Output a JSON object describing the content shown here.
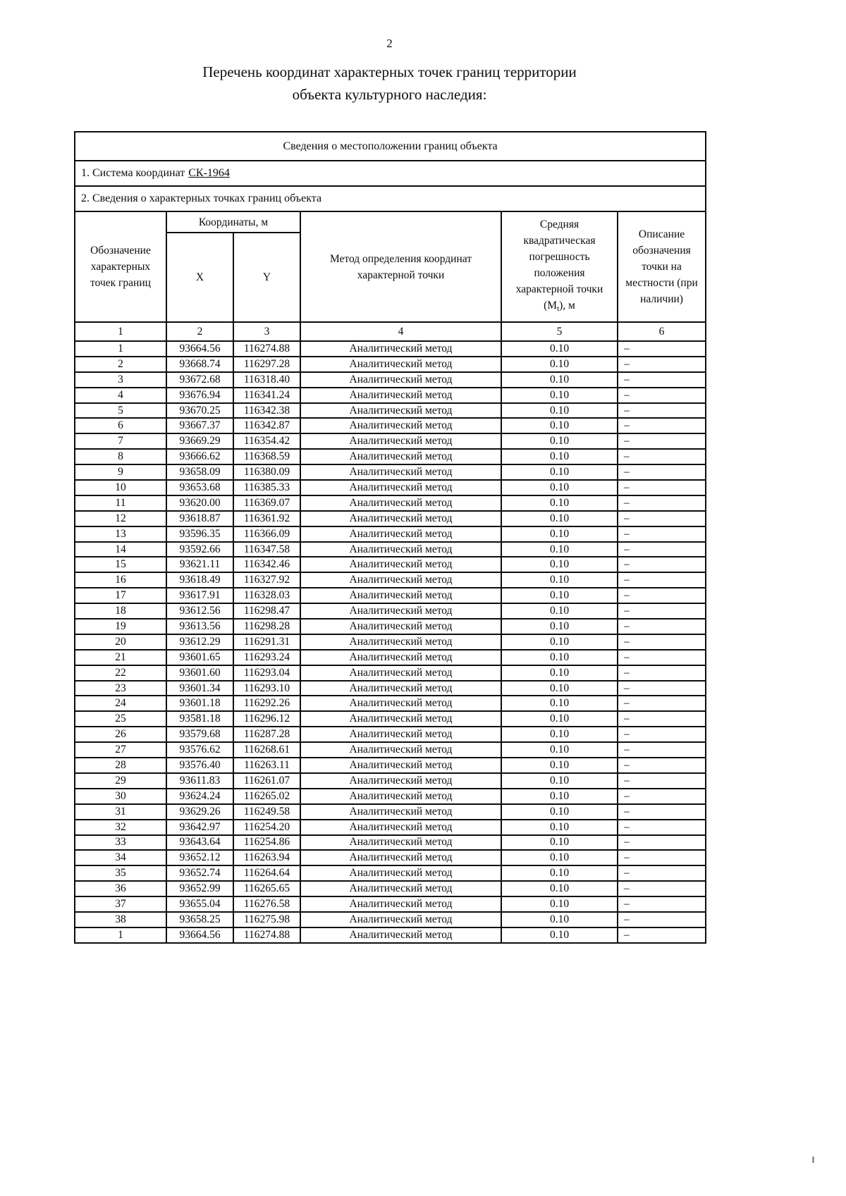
{
  "page": {
    "number": "2",
    "title_line1": "Перечень координат характерных точек границ территории",
    "title_line2": "объекта культурного наследия:"
  },
  "table": {
    "section_header": "Сведения о местоположении границ объекта",
    "coordinate_system_label": "1. Система координат",
    "coordinate_system_value": "СК-1964",
    "points_section_label": "2. Сведения о характерных точках границ объекта",
    "headers": {
      "point_designation": "Обозначение характерных точек границ",
      "coordinates_group": "Координаты, м",
      "x": "X",
      "y": "Y",
      "method": "Метод определения координат характерной точки",
      "error_pre": "Средняя квадратическая погрешность положения характерной точки (M",
      "error_sub": "t",
      "error_post": "), м",
      "description": "Описание обозначения точки на местности (при наличии)"
    },
    "column_numbers": [
      "1",
      "2",
      "3",
      "4",
      "5",
      "6"
    ],
    "rows": [
      {
        "n": "1",
        "x": "93664.56",
        "y": "116274.88",
        "method": "Аналитический метод",
        "error": "0.10",
        "desc": "–"
      },
      {
        "n": "2",
        "x": "93668.74",
        "y": "116297.28",
        "method": "Аналитический метод",
        "error": "0.10",
        "desc": "–"
      },
      {
        "n": "3",
        "x": "93672.68",
        "y": "116318.40",
        "method": "Аналитический метод",
        "error": "0.10",
        "desc": "–"
      },
      {
        "n": "4",
        "x": "93676.94",
        "y": "116341.24",
        "method": "Аналитический метод",
        "error": "0.10",
        "desc": "–"
      },
      {
        "n": "5",
        "x": "93670.25",
        "y": "116342.38",
        "method": "Аналитический метод",
        "error": "0.10",
        "desc": "–"
      },
      {
        "n": "6",
        "x": "93667.37",
        "y": "116342.87",
        "method": "Аналитический метод",
        "error": "0.10",
        "desc": "–"
      },
      {
        "n": "7",
        "x": "93669.29",
        "y": "116354.42",
        "method": "Аналитический метод",
        "error": "0.10",
        "desc": "–"
      },
      {
        "n": "8",
        "x": "93666.62",
        "y": "116368.59",
        "method": "Аналитический метод",
        "error": "0.10",
        "desc": "–"
      },
      {
        "n": "9",
        "x": "93658.09",
        "y": "116380.09",
        "method": "Аналитический метод",
        "error": "0.10",
        "desc": "–"
      },
      {
        "n": "10",
        "x": "93653.68",
        "y": "116385.33",
        "method": "Аналитический метод",
        "error": "0.10",
        "desc": "–"
      },
      {
        "n": "11",
        "x": "93620.00",
        "y": "116369.07",
        "method": "Аналитический метод",
        "error": "0.10",
        "desc": "–"
      },
      {
        "n": "12",
        "x": "93618.87",
        "y": "116361.92",
        "method": "Аналитический метод",
        "error": "0.10",
        "desc": "–"
      },
      {
        "n": "13",
        "x": "93596.35",
        "y": "116366.09",
        "method": "Аналитический метод",
        "error": "0.10",
        "desc": "–"
      },
      {
        "n": "14",
        "x": "93592.66",
        "y": "116347.58",
        "method": "Аналитический метод",
        "error": "0.10",
        "desc": "–"
      },
      {
        "n": "15",
        "x": "93621.11",
        "y": "116342.46",
        "method": "Аналитический метод",
        "error": "0.10",
        "desc": "–"
      },
      {
        "n": "16",
        "x": "93618.49",
        "y": "116327.92",
        "method": "Аналитический метод",
        "error": "0.10",
        "desc": "–"
      },
      {
        "n": "17",
        "x": "93617.91",
        "y": "116328.03",
        "method": "Аналитический метод",
        "error": "0.10",
        "desc": "–"
      },
      {
        "n": "18",
        "x": "93612.56",
        "y": "116298.47",
        "method": "Аналитический метод",
        "error": "0.10",
        "desc": "–"
      },
      {
        "n": "19",
        "x": "93613.56",
        "y": "116298.28",
        "method": "Аналитический метод",
        "error": "0.10",
        "desc": "–"
      },
      {
        "n": "20",
        "x": "93612.29",
        "y": "116291.31",
        "method": "Аналитический метод",
        "error": "0.10",
        "desc": "–"
      },
      {
        "n": "21",
        "x": "93601.65",
        "y": "116293.24",
        "method": "Аналитический метод",
        "error": "0.10",
        "desc": "–"
      },
      {
        "n": "22",
        "x": "93601.60",
        "y": "116293.04",
        "method": "Аналитический метод",
        "error": "0.10",
        "desc": "–"
      },
      {
        "n": "23",
        "x": "93601.34",
        "y": "116293.10",
        "method": "Аналитический метод",
        "error": "0.10",
        "desc": "–"
      },
      {
        "n": "24",
        "x": "93601.18",
        "y": "116292.26",
        "method": "Аналитический метод",
        "error": "0.10",
        "desc": "–"
      },
      {
        "n": "25",
        "x": "93581.18",
        "y": "116296.12",
        "method": "Аналитический метод",
        "error": "0.10",
        "desc": "–"
      },
      {
        "n": "26",
        "x": "93579.68",
        "y": "116287.28",
        "method": "Аналитический метод",
        "error": "0.10",
        "desc": "–"
      },
      {
        "n": "27",
        "x": "93576.62",
        "y": "116268.61",
        "method": "Аналитический метод",
        "error": "0.10",
        "desc": "–"
      },
      {
        "n": "28",
        "x": "93576.40",
        "y": "116263.11",
        "method": "Аналитический метод",
        "error": "0.10",
        "desc": "–"
      },
      {
        "n": "29",
        "x": "93611.83",
        "y": "116261.07",
        "method": "Аналитический метод",
        "error": "0.10",
        "desc": "–"
      },
      {
        "n": "30",
        "x": "93624.24",
        "y": "116265.02",
        "method": "Аналитический метод",
        "error": "0.10",
        "desc": "–"
      },
      {
        "n": "31",
        "x": "93629.26",
        "y": "116249.58",
        "method": "Аналитический метод",
        "error": "0.10",
        "desc": "–"
      },
      {
        "n": "32",
        "x": "93642.97",
        "y": "116254.20",
        "method": "Аналитический метод",
        "error": "0.10",
        "desc": "–"
      },
      {
        "n": "33",
        "x": "93643.64",
        "y": "116254.86",
        "method": "Аналитический метод",
        "error": "0.10",
        "desc": "–"
      },
      {
        "n": "34",
        "x": "93652.12",
        "y": "116263.94",
        "method": "Аналитический метод",
        "error": "0.10",
        "desc": "–"
      },
      {
        "n": "35",
        "x": "93652.74",
        "y": "116264.64",
        "method": "Аналитический метод",
        "error": "0.10",
        "desc": "–"
      },
      {
        "n": "36",
        "x": "93652.99",
        "y": "116265.65",
        "method": "Аналитический метод",
        "error": "0.10",
        "desc": "–"
      },
      {
        "n": "37",
        "x": "93655.04",
        "y": "116276.58",
        "method": "Аналитический метод",
        "error": "0.10",
        "desc": "–"
      },
      {
        "n": "38",
        "x": "93658.25",
        "y": "116275.98",
        "method": "Аналитический метод",
        "error": "0.10",
        "desc": "–"
      },
      {
        "n": "1",
        "x": "93664.56",
        "y": "116274.88",
        "method": "Аналитический метод",
        "error": "0.10",
        "desc": "–"
      }
    ]
  }
}
